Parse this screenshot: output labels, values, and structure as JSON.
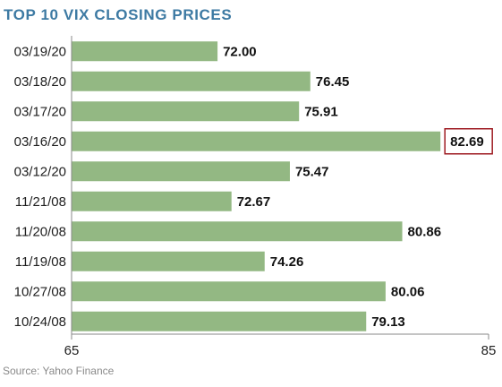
{
  "chart_data": {
    "type": "bar",
    "orientation": "horizontal",
    "title": "TOP 10 VIX CLOSING PRICES",
    "categories": [
      "03/19/20",
      "03/18/20",
      "03/17/20",
      "03/16/20",
      "03/12/20",
      "11/21/08",
      "11/20/08",
      "11/19/08",
      "10/27/08",
      "10/24/08"
    ],
    "values": [
      72.0,
      76.45,
      75.91,
      82.69,
      75.47,
      72.67,
      80.86,
      74.26,
      80.06,
      79.13
    ],
    "value_labels": [
      "72.00",
      "76.45",
      "75.91",
      "82.69",
      "75.47",
      "72.67",
      "80.86",
      "74.26",
      "80.06",
      "79.13"
    ],
    "highlight_index": 3,
    "xlim": [
      65,
      85
    ],
    "x_ticks": [
      "65",
      "85"
    ],
    "grid": false,
    "colors": {
      "bar": "#93b883",
      "highlight_box": "#9e1b22",
      "title": "#3d7aa3",
      "axis": "#888888"
    }
  },
  "source": "Source: Yahoo Finance"
}
